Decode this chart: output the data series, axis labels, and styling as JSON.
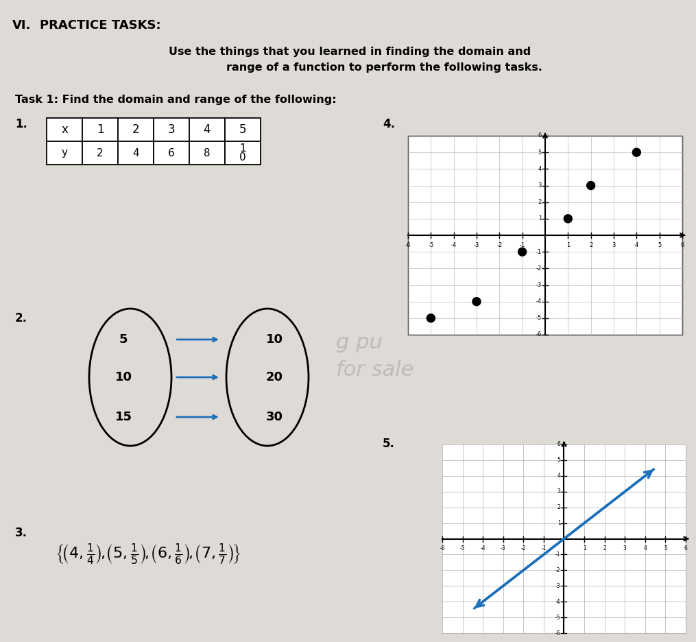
{
  "title_roman": "VI.",
  "title_text": "PRACTICE TASKS:",
  "bg_color": "#ccc8c4",
  "paper_color": "#e8e5e0",
  "table_x_labels": [
    "x",
    "1",
    "2",
    "3",
    "4",
    "5"
  ],
  "table_y_labels": [
    "y",
    "2",
    "4",
    "6",
    "8",
    "1\n0"
  ],
  "mapping_domain": [
    5,
    10,
    15
  ],
  "mapping_range": [
    10,
    20,
    30
  ],
  "scatter_points_4": [
    [
      -5,
      -5
    ],
    [
      -3,
      -4
    ],
    [
      -1,
      -1
    ],
    [
      1,
      1
    ],
    [
      2,
      3
    ],
    [
      4,
      5
    ]
  ],
  "line_color": "#1a6fba",
  "arrow_color": "#1a6fba"
}
